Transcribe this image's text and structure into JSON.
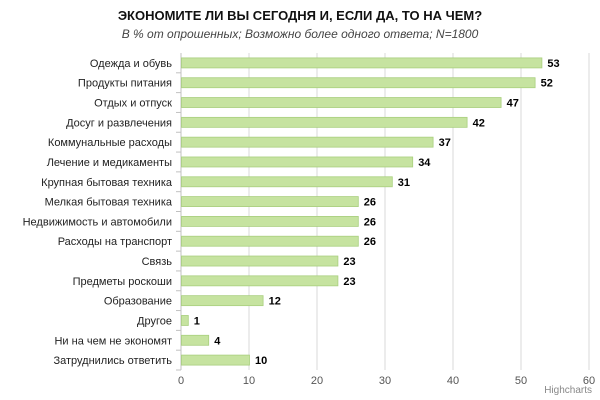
{
  "chart_data": {
    "type": "bar",
    "orientation": "horizontal",
    "title": "ЭКОНОМИТЕ ЛИ ВЫ СЕГОДНЯ И, ЕСЛИ ДА, ТО НА ЧЕМ?",
    "subtitle": "В % от опрошенных; Возможно более одного ответа; N=1800",
    "categories": [
      "Одежда и обувь",
      "Продукты питания",
      "Отдых и отпуск",
      "Досуг и развлечения",
      "Коммунальные расходы",
      "Лечение и медикаменты",
      "Крупная бытовая техника",
      "Мелкая бытовая техника",
      "Недвижимость и автомобили",
      "Расходы на транспорт",
      "Связь",
      "Предметы роскоши",
      "Образование",
      "Другое",
      "Ни на чем не экономят",
      "Затруднились ответить"
    ],
    "values": [
      53,
      52,
      47,
      42,
      37,
      34,
      31,
      26,
      26,
      26,
      23,
      23,
      12,
      1,
      4,
      10
    ],
    "xlim": [
      0,
      60
    ],
    "ticks": [
      "0",
      "10",
      "20",
      "30",
      "40",
      "50",
      "60"
    ],
    "xlabel": "",
    "ylabel": "",
    "grid": true,
    "data_labels": true,
    "bar_color": "#c6e3a0",
    "bar_border": "#a9cf7e",
    "grid_color": "#d8d8d8"
  },
  "credits": "Highcharts"
}
